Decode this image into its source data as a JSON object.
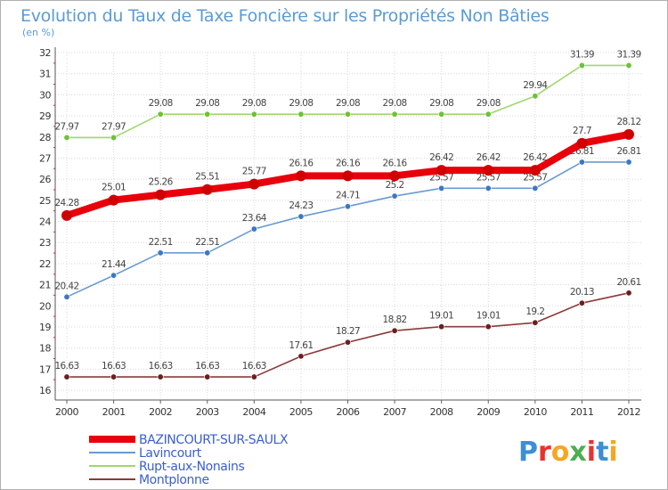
{
  "title": "Evolution du Taux de Taxe Foncière sur les Propriétés Non Bâties",
  "subtitle": "(en %)",
  "logo": "Proxiti",
  "chart_data": {
    "type": "line",
    "title": "Evolution du Taux de Taxe Foncière sur les Propriétés Non Bâties",
    "ylabel": "(en %)",
    "xlabel": "",
    "x": [
      "2000",
      "2001",
      "2002",
      "2003",
      "2004",
      "2005",
      "2006",
      "2007",
      "2008",
      "2009",
      "2010",
      "2011",
      "2012"
    ],
    "ylim": [
      16,
      32
    ],
    "yticks": [
      16,
      17,
      18,
      19,
      20,
      21,
      22,
      23,
      24,
      25,
      26,
      27,
      28,
      29,
      30,
      31,
      32
    ],
    "grid": true,
    "legend_position": "bottom-left",
    "series": [
      {
        "name": "BAZINCOURT-SUR-SAULX",
        "color": "#e8000b",
        "marker_color": "#d10000",
        "values": [
          24.28,
          25.01,
          25.26,
          25.51,
          25.77,
          26.16,
          26.16,
          26.16,
          26.42,
          26.42,
          26.42,
          27.7,
          28.12
        ],
        "labels": [
          "24.28",
          "25.01",
          "25.26",
          "25.51",
          "25.77",
          "26.16",
          "26.16",
          "26.16",
          "26.42",
          "26.42",
          "26.42",
          "27.7",
          "28.12"
        ]
      },
      {
        "name": "Lavincourt",
        "color": "#6a9bd1",
        "marker_color": "#3b78c4",
        "values": [
          20.42,
          21.44,
          22.51,
          22.51,
          23.64,
          24.23,
          24.71,
          25.2,
          25.57,
          25.57,
          25.57,
          26.81,
          26.81
        ],
        "labels": [
          "20.42",
          "21.44",
          "22.51",
          "22.51",
          "23.64",
          "24.23",
          "24.71",
          "25.2",
          "25.57",
          "25.57",
          "25.57",
          "26.81",
          "26.81"
        ]
      },
      {
        "name": "Rupt-aux-Nonains",
        "color": "#9fd86b",
        "marker_color": "#6cc23a",
        "values": [
          27.97,
          27.97,
          29.08,
          29.08,
          29.08,
          29.08,
          29.08,
          29.08,
          29.08,
          29.08,
          29.94,
          31.39,
          31.39
        ],
        "labels": [
          "27.97",
          "27.97",
          "29.08",
          "29.08",
          "29.08",
          "29.08",
          "29.08",
          "29.08",
          "29.08",
          "29.08",
          "29.94",
          "31.39",
          "31.39"
        ]
      },
      {
        "name": "Montplonne",
        "color": "#8b3a3a",
        "marker_color": "#6b1f1f",
        "values": [
          16.63,
          16.63,
          16.63,
          16.63,
          16.63,
          17.61,
          18.27,
          18.82,
          19.01,
          19.01,
          19.2,
          20.13,
          20.61
        ],
        "labels": [
          "16.63",
          "16.63",
          "16.63",
          "16.63",
          "16.63",
          "17.61",
          "18.27",
          "18.82",
          "19.01",
          "19.01",
          "19.2",
          "20.13",
          "20.61"
        ]
      }
    ]
  }
}
